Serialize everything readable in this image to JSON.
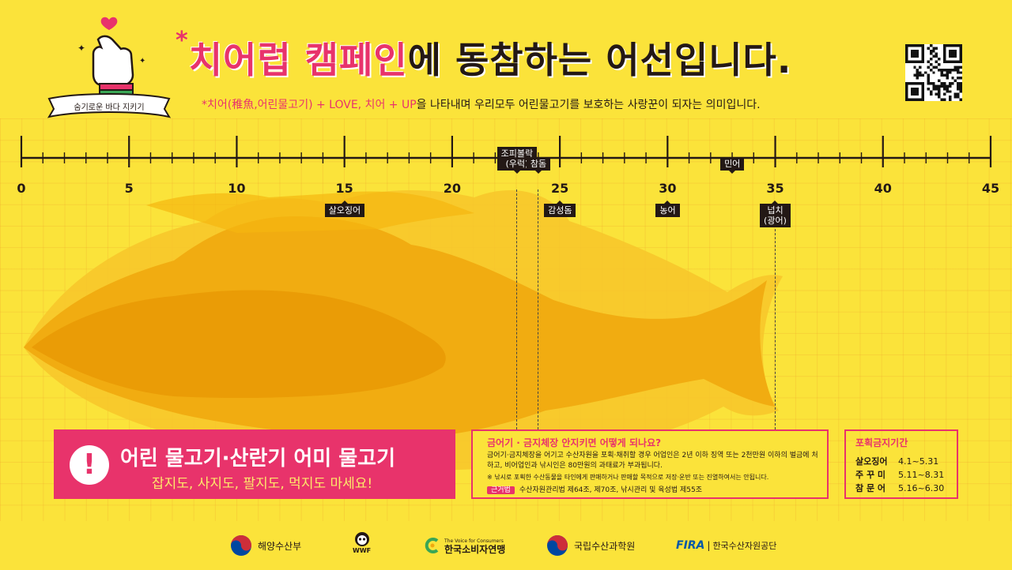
{
  "title": {
    "star": "*",
    "pink": "치어럽 캠페인",
    "rest": "에 동참하는 어선입니다."
  },
  "subtitle": {
    "pink": "*치어(稚魚,어린물고기) + LOVE, 치어 + UP",
    "rest": "을 나타내며 우리모두 어린물고기를 보호하는 사랑꾼이 되자는 의미입니다."
  },
  "badge": {
    "ribbon": "숨기로운 바다 지키기"
  },
  "ruler": {
    "unit_labels": [
      "0",
      "5",
      "10",
      "15",
      "20",
      "25",
      "30",
      "35",
      "40",
      "45"
    ],
    "max": 45
  },
  "fish_tags": [
    {
      "name": "조피볼락\n(우럭)",
      "cm": 23,
      "dir": "up"
    },
    {
      "name": "참돔",
      "cm": 24,
      "dir": "up"
    },
    {
      "name": "민어",
      "cm": 33,
      "dir": "up"
    },
    {
      "name": "살오징어",
      "cm": 15,
      "dir": "down"
    },
    {
      "name": "감성돔",
      "cm": 25,
      "dir": "down"
    },
    {
      "name": "농어",
      "cm": 30,
      "dir": "down"
    },
    {
      "name": "넙치\n(광어)",
      "cm": 35,
      "dir": "down"
    }
  ],
  "warning": {
    "line1": "어린 물고기·산란기 어미 물고기",
    "line2": "잡지도, 사지도, 팔지도, 먹지도 마세요!"
  },
  "info": {
    "heading": "금어기 · 금지체장 안지키면 어떻게 되나요?",
    "body": "금어기·금지체장을 어기고 수산자원을 포획·채취할 경우 어업인은 2년 이하 징역 또는 2천만원 이하의 벌금에 처하고, 비어업인과 낚시인은 80만원의 과태료가 부과됩니다.",
    "note": "※ 낚시로 포획한 수산동물을 타인에게 판매하거나 판매할 목적으로 저장·운반 또는 진열하여서는 안됩니다.",
    "law_label": "근거법",
    "law_text": "수산자원관리법 제64조, 제70조, 낚시관리 및 육성법 제55조"
  },
  "ban_period": {
    "heading": "포획금지기간",
    "rows": [
      {
        "name": "살오징어",
        "period": "4.1~5.31"
      },
      {
        "name": "주 꾸 미",
        "period": "5.11~8.31"
      },
      {
        "name": "참 문 어",
        "period": "5.16~6.30"
      }
    ]
  },
  "logos": [
    "해양수산부",
    "WWF",
    "한국소비자연맹",
    "국립수산과학원",
    "한국수산자원공단"
  ],
  "logo_extra": {
    "consumer_small": "The Voice for Consumers",
    "fira": "FIRA"
  },
  "colors": {
    "background": "#fbe33a",
    "accent": "#e8336b",
    "fish": "#f5b70f",
    "fish_dark": "#eea00a"
  }
}
